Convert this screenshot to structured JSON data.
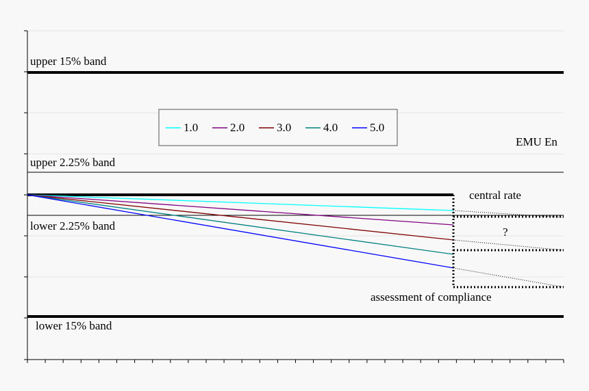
{
  "labels": {
    "upper_15": "upper 15% band",
    "upper_225": "upper 2.25% band",
    "lower_225": "lower 2.25% band",
    "lower_15": "lower 15% band",
    "emu": "EMU En",
    "central": "central rate",
    "question": "?",
    "assessment": "assessment of compliance"
  },
  "legend": [
    {
      "name": "1.0",
      "color": "#00ffff"
    },
    {
      "name": "2.0",
      "color": "#800080"
    },
    {
      "name": "3.0",
      "color": "#800000"
    },
    {
      "name": "4.0",
      "color": "#008080"
    },
    {
      "name": "5.0",
      "color": "#0000ff"
    }
  ]
}
